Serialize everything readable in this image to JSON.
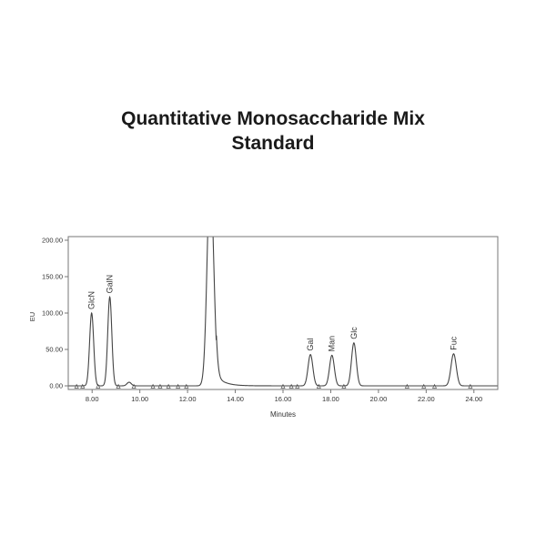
{
  "title_line1": "Quantitative Monosaccharide Mix",
  "title_line2": "Standard",
  "chart_data": {
    "type": "line",
    "title": "Quantitative Monosaccharide Mix Standard",
    "xlabel": "Minutes",
    "ylabel": "EU",
    "xlim": [
      7.0,
      25.0
    ],
    "ylim": [
      -5,
      205
    ],
    "x_ticks": [
      "8.00",
      "10.00",
      "12.00",
      "14.00",
      "16.00",
      "18.00",
      "20.00",
      "22.00",
      "24.00"
    ],
    "y_ticks": [
      "0.00",
      "50.00",
      "100.00",
      "150.00",
      "200.00"
    ],
    "grid": false,
    "peaks": [
      {
        "label": "GlcN",
        "time": 7.98,
        "height": 100
      },
      {
        "label": "GalN",
        "time": 8.74,
        "height": 122
      },
      {
        "label": "",
        "time": 9.55,
        "height": 5
      },
      {
        "label": "",
        "time": 12.95,
        "height": 290
      },
      {
        "label": "Gal",
        "time": 17.15,
        "height": 43
      },
      {
        "label": "Man",
        "time": 18.05,
        "height": 42
      },
      {
        "label": "Glc",
        "time": 18.97,
        "height": 59
      },
      {
        "label": "Fuc",
        "time": 23.15,
        "height": 44
      }
    ]
  }
}
